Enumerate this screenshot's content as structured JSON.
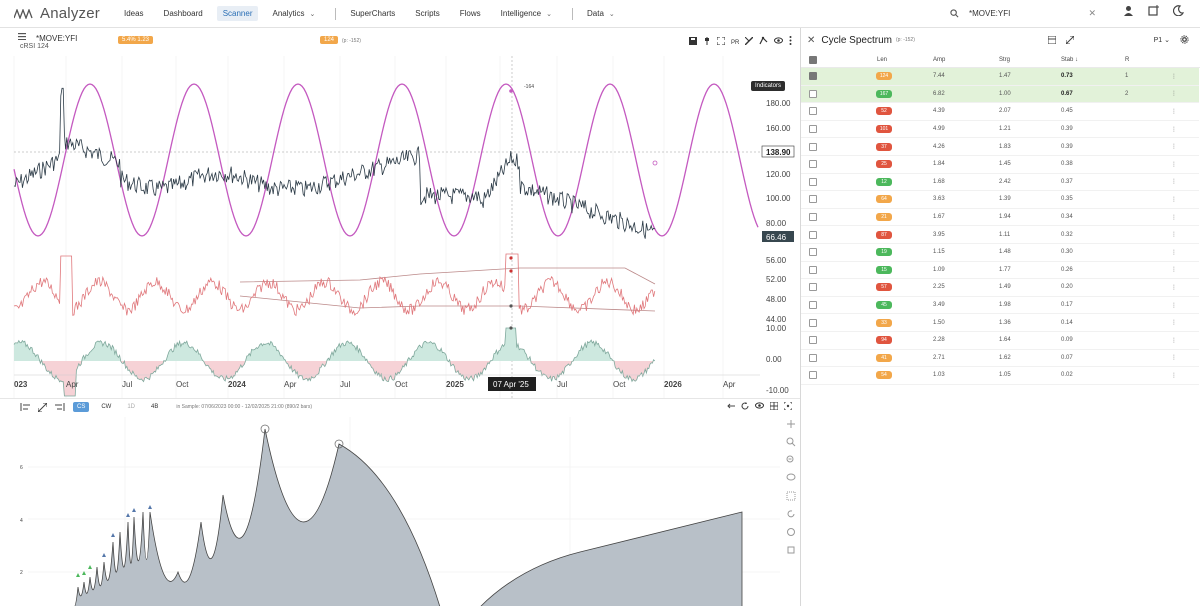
{
  "app": {
    "title": "Analyzer"
  },
  "nav": {
    "items": [
      {
        "label": "Ideas"
      },
      {
        "label": "Dashboard"
      },
      {
        "label": "Scanner"
      },
      {
        "label": "Analytics"
      },
      {
        "label": "SuperCharts"
      },
      {
        "label": "Scripts"
      },
      {
        "label": "Flows"
      },
      {
        "label": "Intelligence"
      },
      {
        "label": "Data"
      }
    ]
  },
  "search": {
    "value": "*MOVE:YFI"
  },
  "chart": {
    "symbol": "*MOVE:YFI",
    "indicator": "cRSI",
    "indicator_value": "124",
    "badge_left": "5.4%  1.23",
    "badge_mid": "124",
    "badge_mid_sub": "(p: -152)",
    "cycle_label": "-164",
    "tooltip": "Indicators",
    "price_ticks": [
      "180.00",
      "160.00",
      "120.00",
      "100.00",
      "80.00"
    ],
    "current_price": "138.90",
    "last_price": "66.46",
    "rsi_ticks": [
      "56.00",
      "52.00",
      "48.00",
      "44.00"
    ],
    "osc_ticks": [
      "10.00",
      "0.00",
      "-10.00"
    ],
    "date_labels": [
      "023",
      "Apr",
      "Jul",
      "Oct",
      "2024",
      "Apr",
      "Jul",
      "Oct",
      "2025",
      "Jul",
      "Oct",
      "2026",
      "Apr"
    ],
    "cursor_date": "07 Apr '25"
  },
  "spectrum": {
    "tabs": [
      {
        "label": "CS"
      },
      {
        "label": "CW"
      },
      {
        "label": "1D"
      },
      {
        "label": "4B"
      }
    ],
    "info": "in Sample: 07/06/2023 00:00 - 12/02/2025 21:00 (890/2 bars)",
    "y_ticks": [
      "6",
      "4",
      "2"
    ]
  },
  "cycle_spectrum": {
    "title": "Cycle Spectrum",
    "subtitle": "(p: -152)",
    "page": "P1",
    "headers": {
      "len": "Len",
      "amp": "Amp",
      "strg": "Strg",
      "stab": "Stab ↓",
      "r": "R"
    },
    "rows": [
      {
        "len": "124",
        "amp": "7.44",
        "strg": "1.47",
        "stab": "0.73",
        "r": "1",
        "color": "#f2a74a",
        "selected": true,
        "checked": true,
        "bold": true
      },
      {
        "len": "167",
        "amp": "6.82",
        "strg": "1.00",
        "stab": "0.67",
        "r": "2",
        "color": "#4cb85c",
        "selected": true,
        "checked": false,
        "bold": true
      },
      {
        "len": "52",
        "amp": "4.39",
        "strg": "2.07",
        "stab": "0.45",
        "r": "",
        "color": "#e0553f"
      },
      {
        "len": "101",
        "amp": "4.99",
        "strg": "1.21",
        "stab": "0.39",
        "r": "",
        "color": "#e0553f"
      },
      {
        "len": "37",
        "amp": "4.26",
        "strg": "1.83",
        "stab": "0.39",
        "r": "",
        "color": "#e0553f"
      },
      {
        "len": "25",
        "amp": "1.84",
        "strg": "1.45",
        "stab": "0.38",
        "r": "",
        "color": "#e0553f"
      },
      {
        "len": "12",
        "amp": "1.68",
        "strg": "2.42",
        "stab": "0.37",
        "r": "",
        "color": "#4cb85c"
      },
      {
        "len": "64",
        "amp": "3.63",
        "strg": "1.39",
        "stab": "0.35",
        "r": "",
        "color": "#f2a74a"
      },
      {
        "len": "21",
        "amp": "1.67",
        "strg": "1.94",
        "stab": "0.34",
        "r": "",
        "color": "#f2a74a"
      },
      {
        "len": "87",
        "amp": "3.95",
        "strg": "1.11",
        "stab": "0.32",
        "r": "",
        "color": "#e0553f"
      },
      {
        "len": "19",
        "amp": "1.15",
        "strg": "1.48",
        "stab": "0.30",
        "r": "",
        "color": "#4cb85c"
      },
      {
        "len": "15",
        "amp": "1.09",
        "strg": "1.77",
        "stab": "0.26",
        "r": "",
        "color": "#4cb85c"
      },
      {
        "len": "57",
        "amp": "2.25",
        "strg": "1.49",
        "stab": "0.20",
        "r": "",
        "color": "#e0553f"
      },
      {
        "len": "45",
        "amp": "3.49",
        "strg": "1.98",
        "stab": "0.17",
        "r": "",
        "color": "#4cb85c"
      },
      {
        "len": "33",
        "amp": "1.50",
        "strg": "1.36",
        "stab": "0.14",
        "r": "",
        "color": "#f2a74a"
      },
      {
        "len": "94",
        "amp": "2.28",
        "strg": "1.64",
        "stab": "0.09",
        "r": "",
        "color": "#e0553f"
      },
      {
        "len": "41",
        "amp": "2.71",
        "strg": "1.62",
        "stab": "0.07",
        "r": "",
        "color": "#f2a74a"
      },
      {
        "len": "54",
        "amp": "1.03",
        "strg": "1.05",
        "stab": "0.02",
        "r": "",
        "color": "#f2a74a"
      }
    ]
  }
}
